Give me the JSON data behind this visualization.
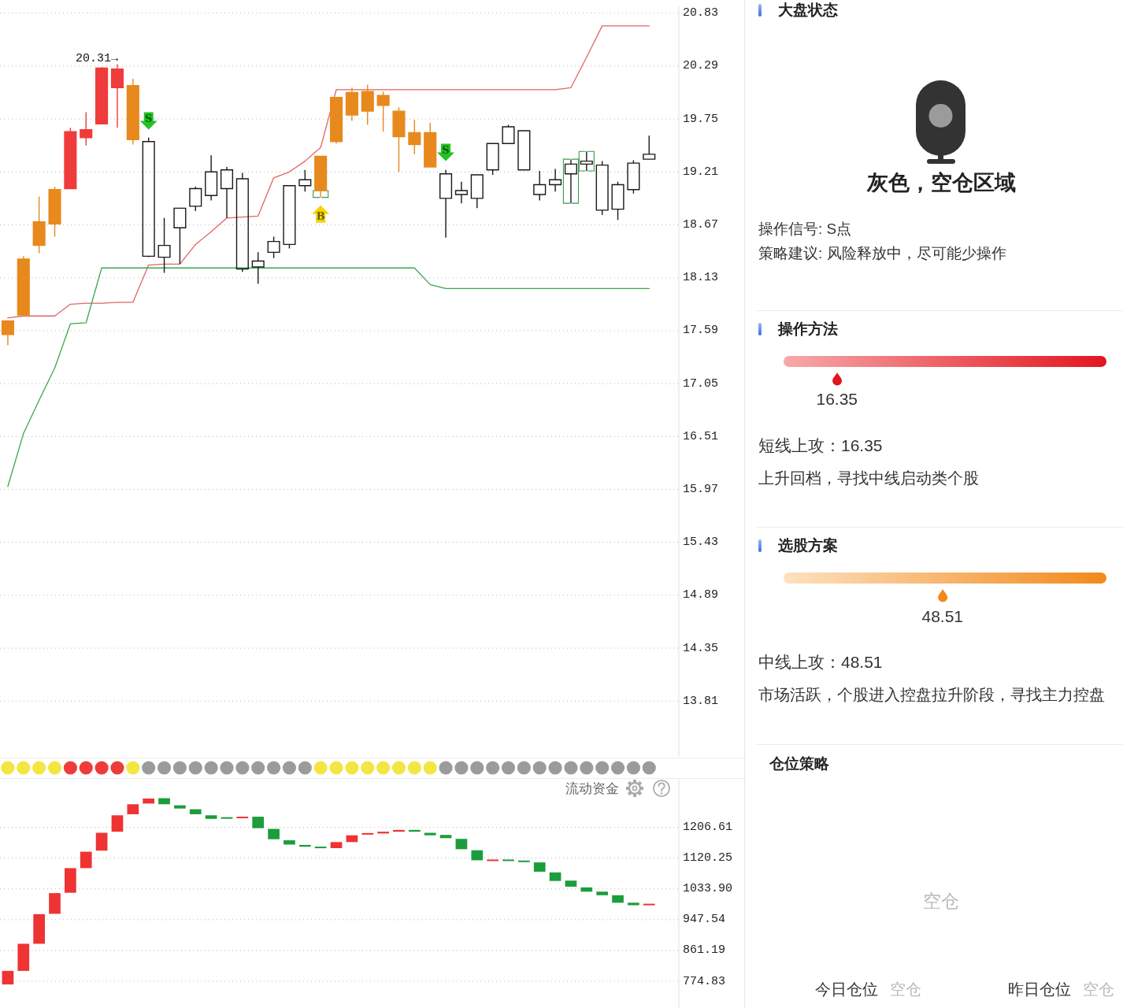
{
  "chart_data": [
    {
      "type": "candlestick",
      "categories": [
        null,
        null,
        null,
        null,
        null,
        null,
        null,
        null,
        null,
        null,
        null,
        null,
        null,
        null,
        null,
        null,
        null,
        null,
        null,
        null,
        null,
        null,
        null,
        null,
        null,
        null,
        null,
        null,
        null,
        null,
        null,
        null,
        null,
        null,
        null,
        null,
        null,
        null,
        null,
        null,
        null,
        null
      ],
      "ylim": [
        13.25,
        20.9
      ],
      "yticks": [
        20.83,
        20.29,
        19.75,
        19.21,
        18.67,
        18.13,
        17.59,
        17.05,
        16.51,
        15.97,
        15.43,
        14.89,
        14.35,
        13.81
      ],
      "grid": "y",
      "tick_labels": "y",
      "series": [
        {
          "type": "line",
          "color": "#e06464",
          "values": [
            17.72,
            17.74,
            17.74,
            17.74,
            17.86,
            17.87,
            17.87,
            17.88,
            17.88,
            18.26,
            18.27,
            18.27,
            18.47,
            18.6,
            18.74,
            18.75,
            18.76,
            19.15,
            19.21,
            19.32,
            19.46,
            20.05,
            20.05,
            20.05,
            20.05,
            20.05,
            20.05,
            20.05,
            20.05,
            20.05,
            20.05,
            20.05,
            20.05,
            20.05,
            20.05,
            20.05,
            20.07,
            20.38,
            20.7,
            20.7,
            20.7,
            20.7
          ]
        },
        {
          "type": "line",
          "color": "#3aa84a",
          "values": [
            16.0,
            16.54,
            16.88,
            17.21,
            17.66,
            17.67,
            18.23,
            18.23,
            18.23,
            18.23,
            18.23,
            18.23,
            18.23,
            18.23,
            18.23,
            18.23,
            18.23,
            18.23,
            18.23,
            18.23,
            18.23,
            18.23,
            18.23,
            18.23,
            18.23,
            18.23,
            18.23,
            18.06,
            18.02,
            18.02,
            18.02,
            18.02,
            18.02,
            18.02,
            18.02,
            18.02,
            18.02,
            18.02,
            18.02,
            18.02,
            18.02,
            18.02
          ]
        },
        {
          "type": "scatter",
          "name": "S",
          "color": "#22c322",
          "values": [
            null,
            null,
            null,
            null,
            null,
            null,
            null,
            null,
            null,
            19.73,
            null,
            null,
            null,
            null,
            null,
            null,
            null,
            null,
            null,
            null,
            null,
            null,
            null,
            null,
            null,
            null,
            null,
            null,
            19.41,
            null,
            null,
            null,
            null,
            null,
            null,
            null,
            null,
            null,
            null,
            null,
            null,
            null
          ]
        },
        {
          "type": "scatter",
          "name": "B",
          "color": "#f5d400",
          "values": [
            null,
            null,
            null,
            null,
            null,
            null,
            null,
            null,
            null,
            null,
            null,
            null,
            null,
            null,
            null,
            null,
            null,
            null,
            null,
            null,
            18.78,
            null,
            null,
            null,
            null,
            null,
            null,
            null,
            null,
            null,
            null,
            null,
            null,
            null,
            null,
            null,
            null,
            null,
            null,
            null,
            null,
            null
          ]
        },
        {
          "type": "candlestick",
          "color": "#3a9a4a",
          "ohlc": [
            null,
            null,
            null,
            null,
            null,
            null,
            null,
            null,
            null,
            null,
            null,
            null,
            null,
            null,
            null,
            null,
            null,
            null,
            null,
            null,
            [
              18.95,
              19.02,
              18.95,
              19.02
            ],
            null,
            null,
            null,
            null,
            null,
            null,
            null,
            null,
            null,
            null,
            null,
            null,
            null,
            null,
            null,
            [
              18.89,
              19.34,
              18.89,
              19.34
            ],
            [
              19.22,
              19.42,
              19.22,
              19.42
            ],
            null,
            null,
            null,
            null
          ]
        },
        {
          "type": "candlestick",
          "ohlc": [
            [
              17.69,
              17.69,
              17.44,
              17.55
            ],
            [
              18.32,
              18.35,
              17.75,
              17.75
            ],
            [
              18.7,
              18.96,
              18.38,
              18.46
            ],
            [
              19.03,
              19.06,
              18.55,
              18.68
            ],
            [
              19.62,
              19.66,
              19.04,
              19.04
            ],
            [
              19.64,
              19.82,
              19.48,
              19.56
            ],
            [
              20.27,
              20.28,
              19.7,
              19.7
            ],
            [
              20.26,
              20.31,
              19.66,
              20.07
            ],
            [
              20.09,
              20.16,
              19.49,
              19.54
            ],
            [
              18.35,
              19.56,
              18.34,
              19.52
            ],
            [
              18.34,
              18.74,
              18.18,
              18.46
            ],
            [
              18.64,
              18.84,
              18.27,
              18.84
            ],
            [
              18.86,
              19.06,
              18.81,
              19.04
            ],
            [
              18.97,
              19.38,
              18.92,
              19.21
            ],
            [
              19.04,
              19.26,
              18.74,
              19.23
            ],
            [
              18.22,
              19.2,
              18.19,
              19.14
            ],
            [
              18.24,
              18.39,
              18.07,
              18.3
            ],
            [
              18.39,
              18.55,
              18.33,
              18.5
            ],
            [
              18.47,
              19.07,
              18.43,
              19.07
            ],
            [
              19.07,
              19.23,
              19.01,
              19.13
            ],
            [
              19.37,
              19.37,
              18.95,
              19.02
            ],
            [
              19.97,
              19.97,
              19.5,
              19.52
            ],
            [
              20.02,
              20.07,
              19.73,
              19.79
            ],
            [
              20.03,
              20.1,
              19.69,
              19.83
            ],
            [
              19.99,
              20.03,
              19.62,
              19.89
            ],
            [
              19.83,
              19.87,
              19.21,
              19.57
            ],
            [
              19.61,
              19.74,
              19.39,
              19.49
            ],
            [
              19.61,
              19.71,
              19.26,
              19.26
            ],
            [
              18.94,
              19.23,
              18.54,
              19.19
            ],
            [
              18.98,
              19.11,
              18.89,
              19.02
            ],
            [
              18.94,
              19.18,
              18.84,
              19.18
            ],
            [
              19.23,
              19.5,
              19.18,
              19.5
            ],
            [
              19.5,
              19.69,
              19.5,
              19.67
            ],
            [
              19.23,
              19.63,
              19.23,
              19.63
            ],
            [
              18.98,
              19.22,
              18.92,
              19.08
            ],
            [
              19.08,
              19.24,
              19.01,
              19.13
            ],
            [
              19.19,
              19.34,
              18.89,
              19.29
            ],
            [
              19.29,
              19.42,
              19.22,
              19.32
            ],
            [
              18.82,
              19.32,
              18.77,
              19.28
            ],
            [
              18.83,
              19.11,
              18.72,
              19.08
            ],
            [
              19.03,
              19.33,
              18.99,
              19.3
            ],
            [
              19.34,
              19.58,
              19.34,
              19.39
            ]
          ],
          "colors": [
            "#e8891e",
            "#e8891e",
            "#e8891e",
            "#e8891e",
            "#ef3b3b",
            "#ef3b3b",
            "#ef3b3b",
            "#ef3b3b",
            "#e8891e",
            "#1a1a1a",
            "#1a1a1a",
            "#1a1a1a",
            "#1a1a1a",
            "#1a1a1a",
            "#1a1a1a",
            "#1a1a1a",
            "#1a1a1a",
            "#1a1a1a",
            "#1a1a1a",
            "#1a1a1a",
            "#e8891e",
            "#e8891e",
            "#e8891e",
            "#e8891e",
            "#e8891e",
            "#e8891e",
            "#e8891e",
            "#e8891e",
            "#1a1a1a",
            "#1a1a1a",
            "#1a1a1a",
            "#1a1a1a",
            "#1a1a1a",
            "#1a1a1a",
            "#1a1a1a",
            "#1a1a1a",
            "#1a1a1a",
            "#1a1a1a",
            "#1a1a1a",
            "#1a1a1a",
            "#1a1a1a",
            "#1a1a1a"
          ],
          "value_labels": [
            null,
            null,
            null,
            null,
            null,
            null,
            null,
            "20.31→",
            null,
            null,
            null,
            null,
            null,
            null,
            null,
            null,
            null,
            null,
            null,
            null,
            null,
            null,
            null,
            null,
            null,
            null,
            null,
            null,
            null,
            null,
            null,
            null,
            null,
            null,
            null,
            null,
            null,
            null,
            null,
            null,
            null,
            null
          ]
        }
      ]
    },
    {
      "type": "other",
      "categories": [
        null,
        null,
        null,
        null,
        null,
        null,
        null,
        null,
        null,
        null,
        null,
        null,
        null,
        null,
        null,
        null,
        null,
        null,
        null,
        null,
        null,
        null,
        null,
        null,
        null,
        null,
        null,
        null,
        null,
        null,
        null,
        null,
        null,
        null,
        null,
        null,
        null,
        null,
        null,
        null,
        null,
        null
      ],
      "colors": [
        "#f2e643",
        "#f2e643",
        "#f2e643",
        "#f2e643",
        "#ee3c3c",
        "#ee3c3c",
        "#ee3c3c",
        "#ee3c3c",
        "#f2e643",
        "#9b9b9b",
        "#9b9b9b",
        "#9b9b9b",
        "#9b9b9b",
        "#9b9b9b",
        "#9b9b9b",
        "#9b9b9b",
        "#9b9b9b",
        "#9b9b9b",
        "#9b9b9b",
        "#9b9b9b",
        "#f2e643",
        "#f2e643",
        "#f2e643",
        "#f2e643",
        "#f2e643",
        "#f2e643",
        "#f2e643",
        "#f2e643",
        "#9b9b9b",
        "#9b9b9b",
        "#9b9b9b",
        "#9b9b9b",
        "#9b9b9b",
        "#9b9b9b",
        "#9b9b9b",
        "#9b9b9b",
        "#9b9b9b",
        "#9b9b9b",
        "#9b9b9b",
        "#9b9b9b",
        "#9b9b9b",
        "#9b9b9b"
      ]
    },
    {
      "type": "bar",
      "title": "流动资金",
      "categories": [
        null,
        null,
        null,
        null,
        null,
        null,
        null,
        null,
        null,
        null,
        null,
        null,
        null,
        null,
        null,
        null,
        null,
        null,
        null,
        null,
        null,
        null,
        null,
        null,
        null,
        null,
        null,
        null,
        null,
        null,
        null,
        null,
        null,
        null,
        null,
        null,
        null,
        null,
        null,
        null,
        null,
        null
      ],
      "base": [
        766,
        804,
        880,
        964,
        1023,
        1092,
        1141,
        1194,
        1243,
        1273,
        1288,
        1268,
        1257,
        1240,
        1234,
        1232,
        1236,
        1202,
        1170,
        1157,
        1152,
        1148,
        1165,
        1186,
        1189,
        1194,
        1199,
        1191,
        1185,
        1174,
        1142,
        1112,
        1116,
        1113,
        1108,
        1080,
        1057,
        1038,
        1026,
        1016,
        995,
        988
      ],
      "values": [
        38,
        76,
        83,
        58,
        69,
        46,
        50,
        46,
        28,
        14,
        -17,
        -9,
        -14,
        -10,
        -3,
        4,
        -32,
        -29,
        -12,
        -5,
        -4,
        17,
        19,
        4,
        5,
        5,
        -5,
        -7,
        -9,
        -29,
        -28,
        4,
        -4,
        -4,
        -26,
        -24,
        -17,
        -12,
        -10,
        -21,
        -7,
        4
      ],
      "colors": [
        "#ee3333",
        "#ee3333",
        "#ee3333",
        "#ee3333",
        "#ee3333",
        "#ee3333",
        "#ee3333",
        "#ee3333",
        "#ee3333",
        "#ee3333",
        "#1b9d3b",
        "#1b9d3b",
        "#1b9d3b",
        "#1b9d3b",
        "#1b9d3b",
        "#ee3333",
        "#1b9d3b",
        "#1b9d3b",
        "#1b9d3b",
        "#1b9d3b",
        "#1b9d3b",
        "#ee3333",
        "#ee3333",
        "#ee3333",
        "#ee3333",
        "#ee3333",
        "#1b9d3b",
        "#1b9d3b",
        "#1b9d3b",
        "#1b9d3b",
        "#1b9d3b",
        "#ee3333",
        "#1b9d3b",
        "#1b9d3b",
        "#1b9d3b",
        "#1b9d3b",
        "#1b9d3b",
        "#1b9d3b",
        "#1b9d3b",
        "#1b9d3b",
        "#1b9d3b",
        "#ee3333"
      ],
      "ylim": [
        700,
        1340
      ],
      "yticks": [
        1206.61,
        1120.25,
        {
          "value": 1033.9,
          "label": "1033.90"
        },
        947.54,
        861.19,
        774.83
      ],
      "grid": "y",
      "tick_labels": "y"
    },
    {
      "type": "other",
      "title": "大盘状态",
      "annotations": [
        "灰色，空仓区域",
        "操作信号: S点",
        "策略建议: 风险释放中，尽可能少操作"
      ]
    },
    {
      "type": "other",
      "title": "操作方法",
      "annotations": [
        "16.35",
        "短线上攻：16.35",
        "上升回档，寻找中线启动类个股"
      ]
    },
    {
      "type": "other",
      "title": "选股方案",
      "annotations": [
        "48.51",
        "中线上攻：48.51",
        "市场活跃，个股进入控盘拉升阶段，寻找主力控盘"
      ]
    },
    {
      "type": "other",
      "title": "仓位策略",
      "annotations": [
        "空仓",
        "今日仓位",
        "空仓",
        "昨日仓位",
        "空仓"
      ]
    }
  ]
}
